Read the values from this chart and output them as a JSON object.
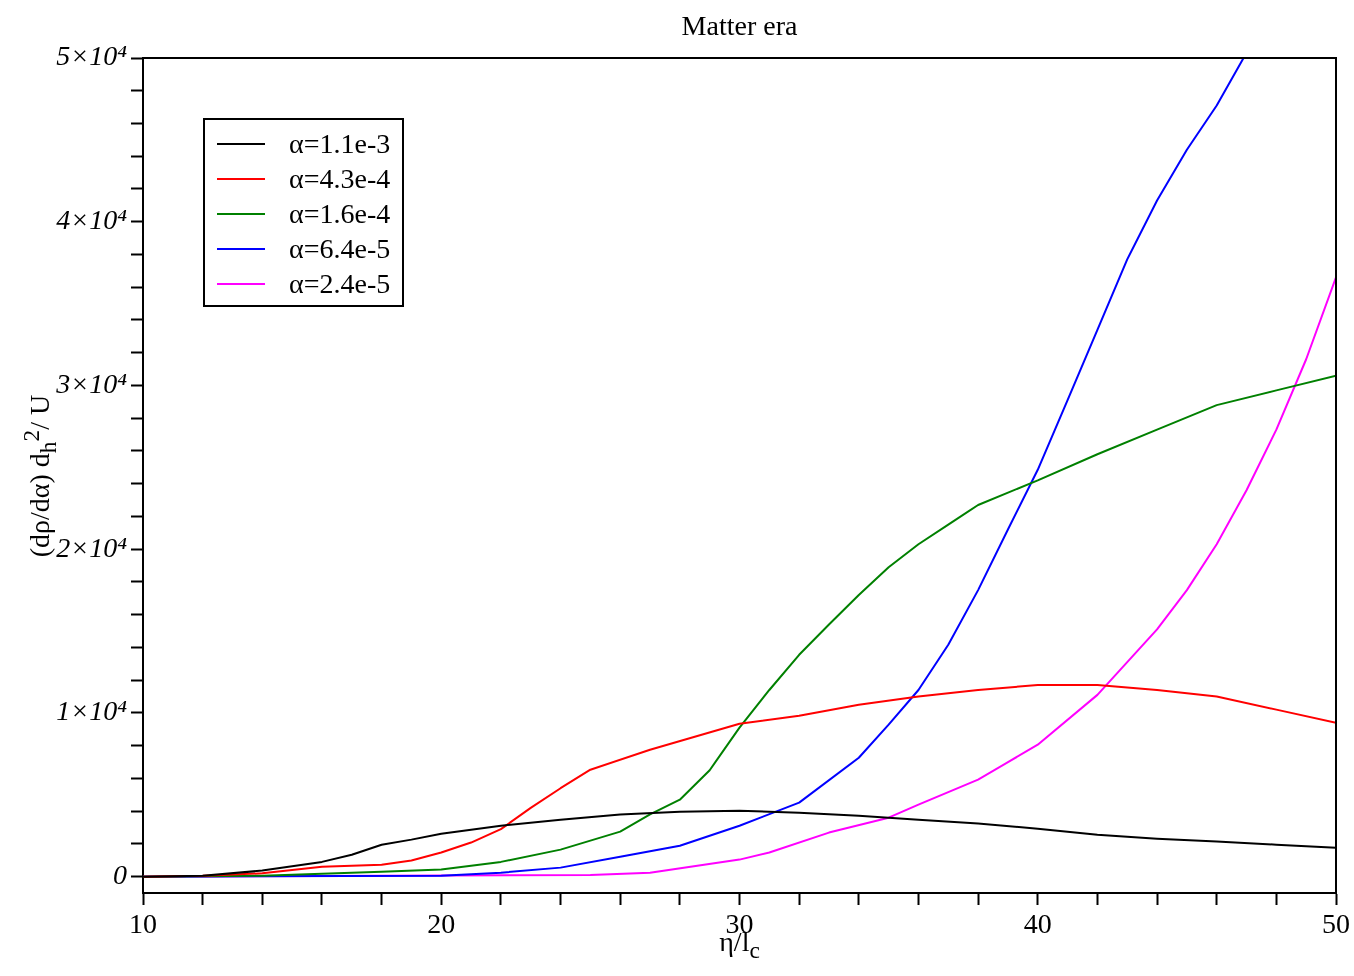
{
  "chart_data": {
    "type": "line",
    "title": "Matter era",
    "xlabel": "η/l$_{c}$",
    "ylabel": "(dρ/dα) d$_{h}$$^{2}$/ U",
    "xlim": [
      10,
      50
    ],
    "ylim": [
      -1000,
      50000
    ],
    "xticks": [
      10,
      {
        "value": 12,
        "label": null
      },
      {
        "value": 14,
        "label": null
      },
      {
        "value": 16,
        "label": null
      },
      {
        "value": 18,
        "label": null
      },
      20,
      {
        "value": 22,
        "label": null
      },
      {
        "value": 24,
        "label": null
      },
      {
        "value": 26,
        "label": null
      },
      {
        "value": 28,
        "label": null
      },
      30,
      {
        "value": 32,
        "label": null
      },
      {
        "value": 34,
        "label": null
      },
      {
        "value": 36,
        "label": null
      },
      {
        "value": 38,
        "label": null
      },
      40,
      {
        "value": 42,
        "label": null
      },
      {
        "value": 44,
        "label": null
      },
      {
        "value": 46,
        "label": null
      },
      {
        "value": 48,
        "label": null
      },
      50
    ],
    "yticks": [
      0,
      {
        "value": 2000,
        "label": null
      },
      {
        "value": 4000,
        "label": null
      },
      {
        "value": 6000,
        "label": null
      },
      {
        "value": 8000,
        "label": null
      },
      {
        "value": 10000,
        "label": "1×10⁴"
      },
      {
        "value": 12000,
        "label": null
      },
      {
        "value": 14000,
        "label": null
      },
      {
        "value": 16000,
        "label": null
      },
      {
        "value": 18000,
        "label": null
      },
      {
        "value": 20000,
        "label": "2×10⁴"
      },
      {
        "value": 22000,
        "label": null
      },
      {
        "value": 24000,
        "label": null
      },
      {
        "value": 26000,
        "label": null
      },
      {
        "value": 28000,
        "label": null
      },
      {
        "value": 30000,
        "label": "3×10⁴"
      },
      {
        "value": 32000,
        "label": null
      },
      {
        "value": 34000,
        "label": null
      },
      {
        "value": 36000,
        "label": null
      },
      {
        "value": 38000,
        "label": null
      },
      {
        "value": 40000,
        "label": "4×10⁴"
      },
      {
        "value": 42000,
        "label": null
      },
      {
        "value": 44000,
        "label": null
      },
      {
        "value": 46000,
        "label": null
      },
      {
        "value": 48000,
        "label": null
      },
      {
        "value": 50000,
        "label": "5×10⁴"
      }
    ],
    "legend": "top left",
    "marker": "none",
    "line_style": "solid",
    "series": [
      {
        "name": "α=1.1e-3",
        "color": "#000000",
        "x": [
          10,
          12,
          14,
          16,
          17,
          18,
          19,
          20,
          22,
          24,
          26,
          28,
          30,
          32,
          34,
          36,
          38,
          40,
          42,
          44,
          46,
          48,
          50
        ],
        "values": [
          0,
          50,
          370,
          900,
          1340,
          1950,
          2260,
          2620,
          3110,
          3480,
          3790,
          3970,
          4030,
          3900,
          3720,
          3480,
          3240,
          2930,
          2560,
          2320,
          2140,
          1950,
          1770
        ]
      },
      {
        "name": "α=4.3e-4",
        "color": "#ff0000",
        "x": [
          10,
          12,
          14,
          16,
          18,
          19,
          20,
          21,
          22,
          23,
          24,
          25,
          27,
          30,
          32,
          34,
          36,
          38,
          40,
          42,
          44,
          46,
          48,
          50
        ],
        "values": [
          0,
          50,
          200,
          600,
          730,
          980,
          1470,
          2080,
          2900,
          4200,
          5400,
          6530,
          7750,
          9340,
          9830,
          10500,
          11000,
          11400,
          11700,
          11700,
          11400,
          11000,
          10200,
          9400
        ]
      },
      {
        "name": "α=1.6e-4",
        "color": "#008000",
        "x": [
          10,
          14,
          18,
          20,
          22,
          24,
          26,
          27,
          28,
          29,
          30,
          31,
          32,
          33,
          34,
          35,
          36,
          37,
          38,
          40,
          42,
          44,
          46,
          48,
          50
        ],
        "values": [
          0,
          50,
          300,
          430,
          900,
          1650,
          2750,
          3800,
          4700,
          6500,
          9100,
          11400,
          13550,
          15400,
          17200,
          18900,
          20300,
          21500,
          22700,
          24200,
          25800,
          27300,
          28800,
          29700,
          30600
        ]
      },
      {
        "name": "α=6.4e-5",
        "color": "#0000ff",
        "x": [
          10,
          20,
          22,
          24,
          26,
          28,
          30,
          32,
          34,
          35,
          36,
          37,
          38,
          39,
          40,
          41,
          42,
          43,
          44,
          45,
          46,
          46.9
        ],
        "values": [
          0,
          50,
          240,
          550,
          1220,
          1890,
          3110,
          4520,
          7260,
          9280,
          11400,
          14160,
          17500,
          21200,
          24850,
          29100,
          33400,
          37700,
          41300,
          44400,
          47100,
          50000
        ]
      },
      {
        "name": "α=2.4e-5",
        "color": "#ff00ff",
        "x": [
          10,
          25,
          27,
          30,
          31,
          33,
          35,
          36,
          38,
          40,
          42,
          44,
          45,
          46,
          47,
          48,
          49,
          50
        ],
        "values": [
          0,
          100,
          240,
          1040,
          1470,
          2690,
          3600,
          4400,
          5920,
          8060,
          11100,
          15100,
          17500,
          20300,
          23600,
          27300,
          31600,
          36600
        ]
      }
    ]
  }
}
